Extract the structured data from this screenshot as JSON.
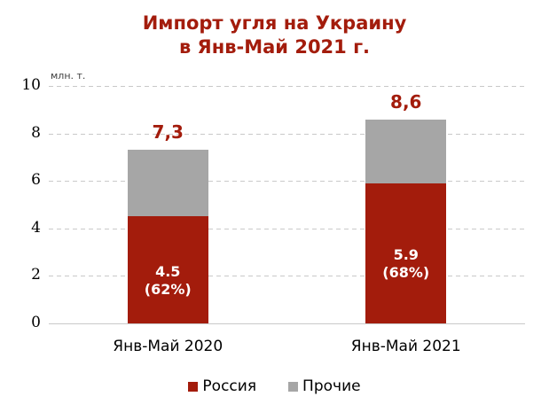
{
  "title": {
    "line1": "Импорт угля на Украину",
    "line2": "в Янв-Май 2021 г."
  },
  "y_axis": {
    "units": "млн. т."
  },
  "colors": {
    "accent_red": "#A31C0C",
    "series_gray": "#A6A6A6",
    "gridline": "#C9C9C9",
    "inner_label_text": "#FFFFFF",
    "background": "#FFFFFF"
  },
  "legend": {
    "items": [
      {
        "label": "Россия",
        "color": "#A31C0C"
      },
      {
        "label": "Прочие",
        "color": "#A6A6A6"
      }
    ]
  },
  "chart_data": {
    "type": "bar",
    "stacked": true,
    "title": "Импорт угля на Украину в Янв-Май 2021 г.",
    "ylabel": "млн. т.",
    "categories": [
      "Янв-Май 2020",
      "Янв-Май 2021"
    ],
    "series": [
      {
        "name": "Россия",
        "color": "#A31C0C",
        "values": [
          4.5,
          5.9
        ],
        "inner_labels": [
          [
            "4.5",
            "(62%)"
          ],
          [
            "5.9",
            "(68%)"
          ]
        ]
      },
      {
        "name": "Прочие",
        "color": "#A6A6A6",
        "values": [
          2.8,
          2.7
        ],
        "inner_labels": [
          [],
          []
        ]
      }
    ],
    "totals": [
      7.3,
      8.6
    ],
    "totals_labels": [
      "7,3",
      "8,6"
    ],
    "ylim": [
      0,
      10
    ],
    "yticks": [
      0,
      2,
      4,
      6,
      8,
      10
    ],
    "grid": "horizontal-dashed",
    "legend_position": "bottom"
  }
}
